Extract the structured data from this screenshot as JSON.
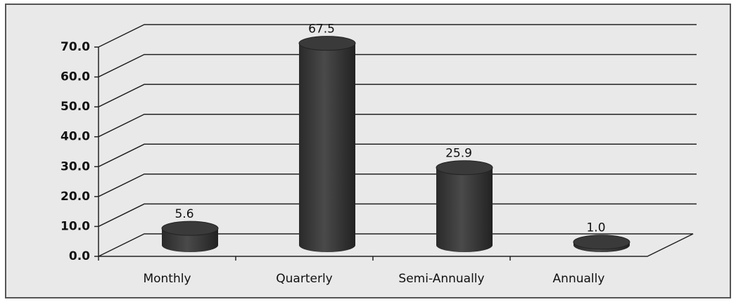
{
  "chart_data": {
    "type": "bar3d",
    "categories": [
      "Monthly",
      "Quarterly",
      "Semi-Annually",
      "Annually"
    ],
    "values": [
      5.6,
      67.5,
      25.9,
      1.0
    ],
    "value_labels": [
      "5.6",
      "67.5",
      "25.9",
      "1.0"
    ],
    "color": "#3a3a3a",
    "ylim": [
      0,
      70
    ],
    "yticks": [
      {
        "value": 0,
        "label": "0.0"
      },
      {
        "value": 10,
        "label": "10.0"
      },
      {
        "value": 20,
        "label": "20.0"
      },
      {
        "value": 30,
        "label": "30.0"
      },
      {
        "value": 40,
        "label": "40.0"
      },
      {
        "value": 50,
        "label": "50.0"
      },
      {
        "value": 60,
        "label": "60.0"
      },
      {
        "value": 70,
        "label": "70.0"
      }
    ],
    "grid": true
  }
}
